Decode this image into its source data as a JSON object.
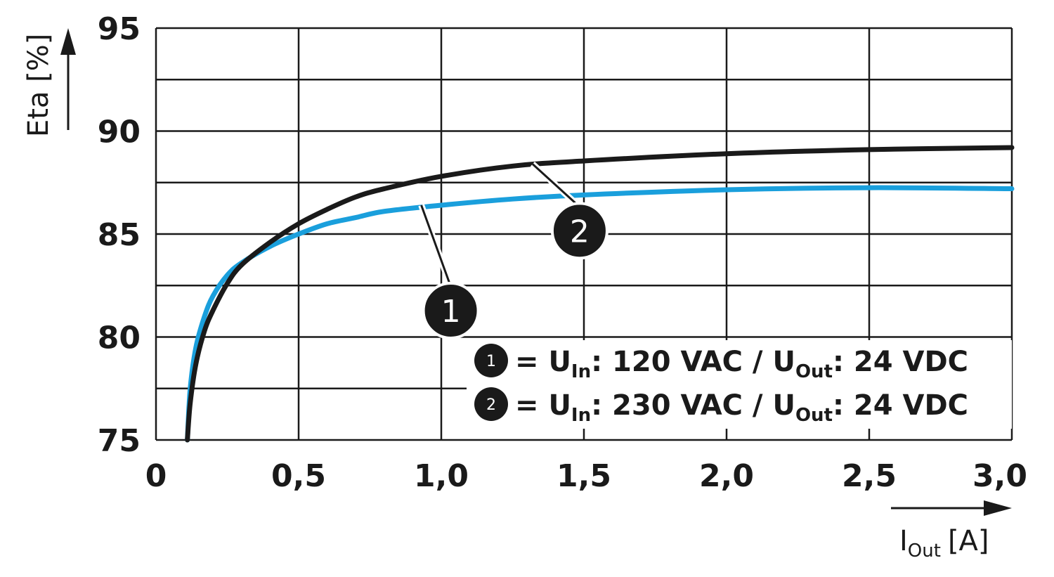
{
  "chart_data": {
    "type": "line",
    "xlabel": "I",
    "xlabel_sub": "Out",
    "xlabel_unit": "[A]",
    "ylabel": "Eta [%]",
    "xlim": [
      0,
      3.0
    ],
    "ylim": [
      75,
      95
    ],
    "x_ticks": [
      0,
      0.5,
      1.0,
      1.5,
      2.0,
      2.5,
      3.0
    ],
    "x_tick_labels": [
      "0",
      "0,5",
      "1,0",
      "1,5",
      "2,0",
      "2,5",
      "3,0"
    ],
    "y_ticks": [
      75,
      80,
      85,
      90,
      95
    ],
    "y_tick_labels": [
      "75",
      "80",
      "85",
      "90",
      "95"
    ],
    "grid": true,
    "series": [
      {
        "name": "1",
        "color": "#1a9fdc",
        "x": [
          0.11,
          0.12,
          0.14,
          0.17,
          0.2,
          0.25,
          0.3,
          0.4,
          0.5,
          0.6,
          0.7,
          0.8,
          1.0,
          1.25,
          1.5,
          2.0,
          2.5,
          3.0
        ],
        "y": [
          75.0,
          77.5,
          79.5,
          81.0,
          82.0,
          83.0,
          83.6,
          84.4,
          85.0,
          85.5,
          85.8,
          86.1,
          86.4,
          86.7,
          86.9,
          87.15,
          87.25,
          87.2
        ]
      },
      {
        "name": "2",
        "color": "#1a1a1a",
        "x": [
          0.11,
          0.12,
          0.14,
          0.17,
          0.2,
          0.25,
          0.3,
          0.4,
          0.5,
          0.6,
          0.7,
          0.8,
          1.0,
          1.25,
          1.5,
          2.0,
          2.5,
          3.0
        ],
        "y": [
          75.0,
          76.8,
          78.7,
          80.3,
          81.3,
          82.6,
          83.5,
          84.6,
          85.5,
          86.2,
          86.8,
          87.2,
          87.8,
          88.3,
          88.55,
          88.9,
          89.1,
          89.2
        ]
      }
    ],
    "callouts": [
      {
        "series": "1",
        "label": "1",
        "at_x": 0.93,
        "at_y": 86.4
      },
      {
        "series": "2",
        "label": "2",
        "at_x": 1.32,
        "at_y": 88.4
      }
    ],
    "legend": {
      "placement": "bottom-right",
      "entries": [
        {
          "badge": "1",
          "prefix": "= U",
          "in_sub": "In",
          "mid": ": 120 VAC / U",
          "out_sub": "Out",
          "suffix": ": 24 VDC"
        },
        {
          "badge": "2",
          "prefix": "= U",
          "in_sub": "In",
          "mid": ": 230 VAC / U",
          "out_sub": "Out",
          "suffix": ": 24 VDC"
        }
      ]
    }
  }
}
